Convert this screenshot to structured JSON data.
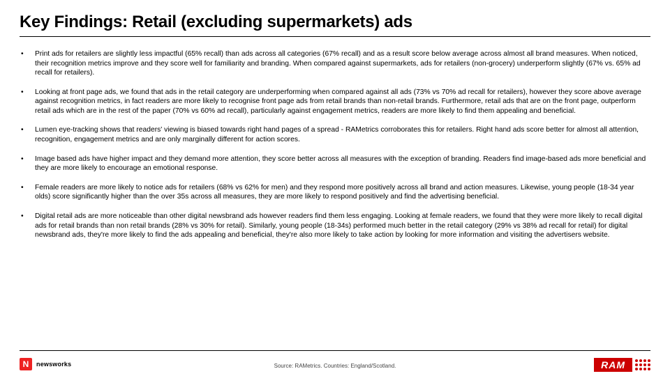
{
  "title": "Key Findings: Retail (excluding supermarkets) ads",
  "bullets": [
    "Print ads for retailers are slightly less impactful (65% recall) than ads across all categories (67% recall) and as a result score below average across almost all brand measures. When noticed, their recognition metrics improve and they score well for familiarity and branding. When compared against supermarkets, ads for retailers (non-grocery) underperform slightly (67% vs. 65% ad recall for retailers).",
    "Looking at front page ads, we found that ads in the retail category are underperforming when compared against all ads (73% vs 70% ad recall for retailers), however they score above average against recognition metrics, in fact readers are more likely to recognise front page ads from retail brands than non-retail brands. Furthermore, retail ads that are on the front page, outperform retail ads which are in the rest of the paper (70% vs 60% ad recall), particularly against engagement metrics, readers are more likely to find them appealing and beneficial.",
    "Lumen eye-tracking shows that readers' viewing is biased towards right hand pages of a spread -  RAMetrics corroborates this for retailers. Right hand ads score better for almost all attention, recognition, engagement metrics and are only marginally different for action scores.",
    "Image based ads have higher impact and they demand more attention, they score better across all measures with the exception of branding. Readers find image-based ads more beneficial and they are more likely to encourage an emotional response.",
    "Female readers are more likely to notice ads for retailers (68% vs 62% for men) and they respond more positively across all brand and action measures. Likewise, young people (18-34 year olds) score significantly higher than the over 35s across all measures, they are more likely to respond positively and find the advertising beneficial.",
    "Digital retail ads are more noticeable than other digital newsbrand ads however readers find them less engaging. Looking at female readers, we found that they were more likely to recall digital ads for retail brands than non retail brands (28% vs 30% for retail). Similarly, young people (18-34s) performed much better in the retail category (29% vs 38% ad recall for retail) for digital newsbrand ads, they're more likely to find the ads appealing and beneficial, they're also more likely to take action by looking for more information and visiting the advertisers website."
  ],
  "source": "Source: RAMetrics. Countries: England/Scotland.",
  "logo_left_mark": "N",
  "logo_left_text": "newsworks",
  "logo_right_text": "RAM",
  "colors": {
    "accent_red": "#c00",
    "mark_red": "#e22",
    "text": "#000",
    "source": "#444",
    "bg": "#ffffff"
  }
}
